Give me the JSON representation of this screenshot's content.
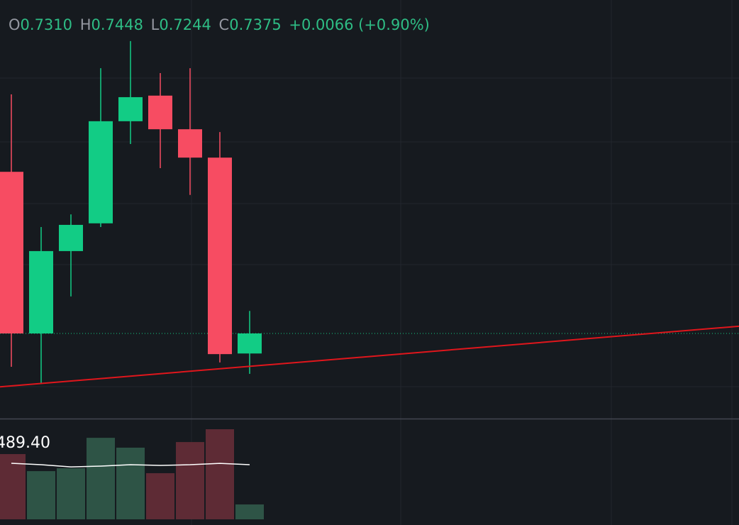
{
  "chart_data": {
    "type": "candlestick",
    "open": [
      0.7899,
      0.7375,
      0.7642,
      0.7732,
      0.8063,
      0.8146,
      0.8037,
      0.7945,
      0.731
    ],
    "high": [
      0.815,
      0.772,
      0.7761,
      0.8235,
      0.8323,
      0.8219,
      0.8235,
      0.8028,
      0.7448
    ],
    "low": [
      0.7267,
      0.7214,
      0.7495,
      0.772,
      0.7989,
      0.7911,
      0.7824,
      0.7281,
      0.7244
    ],
    "close": [
      0.7375,
      0.7642,
      0.7727,
      0.8063,
      0.8141,
      0.8037,
      0.7945,
      0.7308,
      0.7375
    ],
    "ylim": [
      0.7099,
      0.8456
    ],
    "up_color": "#12cc85",
    "down_color": "#f74c62",
    "legend": [
      {
        "label": "O",
        "value": "0.7310"
      },
      {
        "label": "H",
        "value": "0.7448"
      },
      {
        "label": "L",
        "value": "0.7244"
      },
      {
        "label": "C",
        "value": "0.7375"
      }
    ],
    "change_label": "+0.0066 (+0.90%)",
    "trendline": {
      "color": "#e0161c",
      "x": [
        0,
        24
      ],
      "values": [
        0.7205,
        0.7395
      ]
    },
    "volume": {
      "values": [
        570,
        421,
        446,
        712,
        626,
        403,
        675,
        787,
        130
      ],
      "ma": [
        489.4,
        477,
        458,
        465,
        477,
        471,
        477,
        489,
        477
      ],
      "ylim": [
        0,
        880
      ],
      "label": "489.40",
      "up_color": "#2e5446",
      "down_color": "#5e2b35",
      "ma_color": "#ffffff"
    }
  }
}
